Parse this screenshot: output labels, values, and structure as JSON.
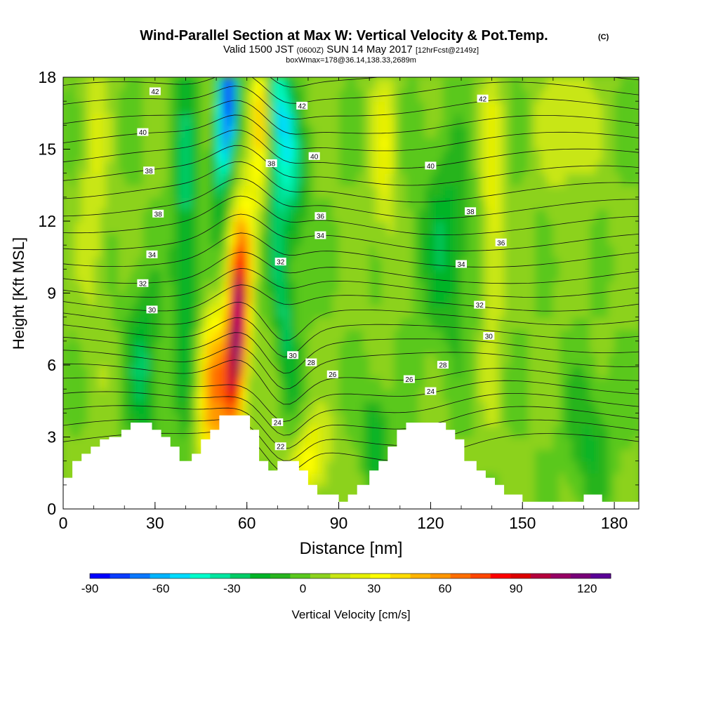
{
  "header": {
    "title": "Wind-Parallel Section at Max W: Vertical Velocity & Pot.Temp.",
    "copyright": "(C)",
    "valid_prefix": "Valid 1500 JST",
    "valid_utc": "(0600Z)",
    "valid_date": "SUN 14 May 2017",
    "forecast": "[12hrFcst@2149z]",
    "box_info": "boxWmax=178@36.14,138.33,2689m"
  },
  "chart_data": {
    "type": "heatmap",
    "xlabel": "Distance [nm]",
    "ylabel": "Height [Kft MSL]",
    "xlim": [
      0,
      188
    ],
    "ylim": [
      0,
      18
    ],
    "x_ticks": [
      0,
      30,
      60,
      90,
      120,
      150,
      180
    ],
    "y_ticks": [
      0,
      3,
      6,
      9,
      12,
      15,
      18
    ],
    "colorbar": {
      "label": "Vertical Velocity [cm/s]",
      "ticks": [
        -90,
        -60,
        -30,
        0,
        30,
        60,
        90,
        120
      ],
      "range": [
        -90,
        130
      ],
      "colors": [
        "#0000ff",
        "#0a3cff",
        "#0a78ff",
        "#00b4ff",
        "#00dcff",
        "#00ffcc",
        "#00e6a0",
        "#00cc66",
        "#00b428",
        "#28b41e",
        "#5ac81e",
        "#8cd21e",
        "#c8e614",
        "#e6f000",
        "#ffff00",
        "#ffdc00",
        "#ffb400",
        "#ff9600",
        "#ff6e00",
        "#ff4600",
        "#ff0000",
        "#dc0000",
        "#b4003c",
        "#960064",
        "#780078",
        "#5a0096"
      ]
    },
    "terrain": [
      [
        0,
        1.3
      ],
      [
        3,
        1.3
      ],
      [
        3,
        2
      ],
      [
        6,
        2
      ],
      [
        6,
        2.3
      ],
      [
        9,
        2.3
      ],
      [
        9,
        2.6
      ],
      [
        12,
        2.6
      ],
      [
        12,
        2.9
      ],
      [
        15,
        2.9
      ],
      [
        15,
        3
      ],
      [
        19,
        3
      ],
      [
        19,
        3.3
      ],
      [
        22,
        3.3
      ],
      [
        22,
        3.6
      ],
      [
        29,
        3.6
      ],
      [
        29,
        3.3
      ],
      [
        32,
        3.3
      ],
      [
        32,
        3
      ],
      [
        35,
        3
      ],
      [
        35,
        2.6
      ],
      [
        38,
        2.6
      ],
      [
        38,
        2
      ],
      [
        42,
        2
      ],
      [
        42,
        2.3
      ],
      [
        45,
        2.3
      ],
      [
        45,
        2.9
      ],
      [
        48,
        2.9
      ],
      [
        48,
        3.3
      ],
      [
        51,
        3.3
      ],
      [
        51,
        3.9
      ],
      [
        61,
        3.9
      ],
      [
        61,
        3.3
      ],
      [
        64,
        3.3
      ],
      [
        64,
        2
      ],
      [
        67,
        2
      ],
      [
        67,
        1.6
      ],
      [
        70,
        1.6
      ],
      [
        70,
        2
      ],
      [
        77,
        2
      ],
      [
        77,
        1.6
      ],
      [
        80,
        1.6
      ],
      [
        80,
        1
      ],
      [
        83,
        1
      ],
      [
        83,
        0.6
      ],
      [
        90,
        0.6
      ],
      [
        90,
        0.3
      ],
      [
        93,
        0.3
      ],
      [
        93,
        0.6
      ],
      [
        96,
        0.6
      ],
      [
        96,
        1
      ],
      [
        100,
        1
      ],
      [
        100,
        1.6
      ],
      [
        103,
        1.6
      ],
      [
        103,
        2
      ],
      [
        106,
        2
      ],
      [
        106,
        2.6
      ],
      [
        109,
        2.6
      ],
      [
        109,
        3.3
      ],
      [
        112,
        3.3
      ],
      [
        112,
        3.6
      ],
      [
        125,
        3.6
      ],
      [
        125,
        3.3
      ],
      [
        128,
        3.3
      ],
      [
        128,
        2.9
      ],
      [
        131,
        2.9
      ],
      [
        131,
        2
      ],
      [
        135,
        2
      ],
      [
        135,
        1.6
      ],
      [
        138,
        1.6
      ],
      [
        138,
        1.3
      ],
      [
        141,
        1.3
      ],
      [
        141,
        1
      ],
      [
        144,
        1
      ],
      [
        144,
        0.6
      ],
      [
        150,
        0.6
      ],
      [
        150,
        0.3
      ],
      [
        170,
        0.3
      ],
      [
        170,
        0.6
      ],
      [
        176,
        0.6
      ],
      [
        176,
        0.3
      ],
      [
        188,
        0.3
      ],
      [
        188,
        0
      ]
    ],
    "theta_labels": [
      {
        "text": "42",
        "x": 30,
        "y": 17.4
      },
      {
        "text": "40",
        "x": 26,
        "y": 15.7
      },
      {
        "text": "38",
        "x": 28,
        "y": 14.1
      },
      {
        "text": "38",
        "x": 31,
        "y": 12.3
      },
      {
        "text": "34",
        "x": 29,
        "y": 10.6
      },
      {
        "text": "32",
        "x": 26,
        "y": 9.4
      },
      {
        "text": "30",
        "x": 29,
        "y": 8.3
      },
      {
        "text": "42",
        "x": 78,
        "y": 16.8
      },
      {
        "text": "42",
        "x": 137,
        "y": 17.1
      },
      {
        "text": "38",
        "x": 68,
        "y": 14.4
      },
      {
        "text": "40",
        "x": 82,
        "y": 14.7
      },
      {
        "text": "40",
        "x": 120,
        "y": 14.3
      },
      {
        "text": "36",
        "x": 84,
        "y": 12.2
      },
      {
        "text": "38",
        "x": 133,
        "y": 12.4
      },
      {
        "text": "34",
        "x": 84,
        "y": 11.4
      },
      {
        "text": "36",
        "x": 143,
        "y": 11.1
      },
      {
        "text": "32",
        "x": 71,
        "y": 10.3
      },
      {
        "text": "34",
        "x": 130,
        "y": 10.2
      },
      {
        "text": "32",
        "x": 136,
        "y": 8.5
      },
      {
        "text": "30",
        "x": 139,
        "y": 7.2
      },
      {
        "text": "30",
        "x": 75,
        "y": 6.4
      },
      {
        "text": "28",
        "x": 81,
        "y": 6.1
      },
      {
        "text": "28",
        "x": 124,
        "y": 6
      },
      {
        "text": "26",
        "x": 88,
        "y": 5.6
      },
      {
        "text": "26",
        "x": 113,
        "y": 5.4
      },
      {
        "text": "24",
        "x": 120,
        "y": 4.9
      },
      {
        "text": "24",
        "x": 70,
        "y": 3.6
      },
      {
        "text": "22",
        "x": 71,
        "y": 2.6
      }
    ]
  }
}
